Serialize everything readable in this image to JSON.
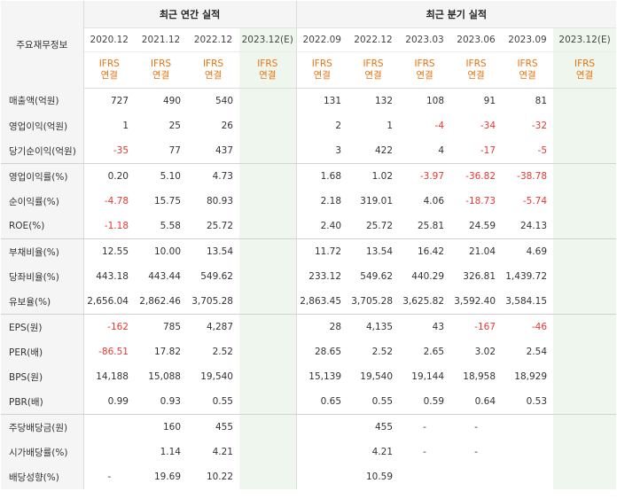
{
  "header": {
    "label": "주요재무정보",
    "annual_group": "최근 연간 실적",
    "quarterly_group": "최근 분기 실적",
    "annual_periods": [
      "2020.12",
      "2021.12",
      "2022.12",
      "2023.12(E)"
    ],
    "quarterly_periods": [
      "2022.09",
      "2022.12",
      "2023.03",
      "2023.06",
      "2023.09",
      "2023.12(E)"
    ],
    "ifrs_line1": "IFRS",
    "ifrs_line2": "연결"
  },
  "rows": [
    {
      "label": "매출액(억원)",
      "values": [
        "727",
        "490",
        "540",
        "",
        "131",
        "132",
        "108",
        "91",
        "81",
        ""
      ]
    },
    {
      "label": "영업이익(억원)",
      "values": [
        "1",
        "25",
        "26",
        "",
        "2",
        "1",
        "-4",
        "-34",
        "-32",
        ""
      ]
    },
    {
      "label": "당기순이익(억원)",
      "values": [
        "-35",
        "77",
        "437",
        "",
        "3",
        "422",
        "4",
        "-17",
        "-5",
        ""
      ]
    },
    {
      "label": "영업이익률(%)",
      "values": [
        "0.20",
        "5.10",
        "4.73",
        "",
        "1.68",
        "1.02",
        "-3.97",
        "-36.82",
        "-38.78",
        ""
      ]
    },
    {
      "label": "순이익률(%)",
      "values": [
        "-4.78",
        "15.75",
        "80.93",
        "",
        "2.18",
        "319.01",
        "4.06",
        "-18.73",
        "-5.74",
        ""
      ]
    },
    {
      "label": "ROE(%)",
      "values": [
        "-1.18",
        "5.58",
        "25.72",
        "",
        "2.40",
        "25.72",
        "25.81",
        "24.59",
        "24.13",
        ""
      ]
    },
    {
      "label": "부채비율(%)",
      "values": [
        "12.55",
        "10.00",
        "13.54",
        "",
        "11.72",
        "13.54",
        "16.42",
        "21.04",
        "4.69",
        ""
      ]
    },
    {
      "label": "당좌비율(%)",
      "values": [
        "443.18",
        "443.44",
        "549.62",
        "",
        "233.12",
        "549.62",
        "440.29",
        "326.81",
        "1,439.72",
        ""
      ]
    },
    {
      "label": "유보율(%)",
      "values": [
        "2,656.04",
        "2,862.46",
        "3,705.28",
        "",
        "2,863.45",
        "3,705.28",
        "3,625.82",
        "3,592.40",
        "3,584.15",
        ""
      ]
    },
    {
      "label": "EPS(원)",
      "values": [
        "-162",
        "785",
        "4,287",
        "",
        "28",
        "4,135",
        "43",
        "-167",
        "-46",
        ""
      ]
    },
    {
      "label": "PER(배)",
      "values": [
        "-86.51",
        "17.82",
        "2.52",
        "",
        "28.65",
        "2.52",
        "2.65",
        "3.02",
        "2.54",
        ""
      ]
    },
    {
      "label": "BPS(원)",
      "values": [
        "14,188",
        "15,088",
        "19,540",
        "",
        "15,139",
        "19,540",
        "19,144",
        "18,958",
        "18,929",
        ""
      ]
    },
    {
      "label": "PBR(배)",
      "values": [
        "0.99",
        "0.93",
        "0.55",
        "",
        "0.65",
        "0.55",
        "0.59",
        "0.64",
        "0.53",
        ""
      ]
    },
    {
      "label": "주당배당금(원)",
      "values": [
        "",
        "160",
        "455",
        "",
        "",
        "455",
        "-",
        "-",
        "",
        ""
      ]
    },
    {
      "label": "시가배당률(%)",
      "values": [
        "",
        "1.14",
        "4.21",
        "",
        "",
        "4.21",
        "-",
        "-",
        "",
        ""
      ]
    },
    {
      "label": "배당성향(%)",
      "values": [
        "-",
        "19.69",
        "10.22",
        "",
        "",
        "10.59",
        "",
        "",
        "",
        ""
      ]
    }
  ],
  "colors": {
    "negative": "#e53935",
    "ifrs": "#e8730c",
    "estimate_bg": "#eef6ee"
  }
}
